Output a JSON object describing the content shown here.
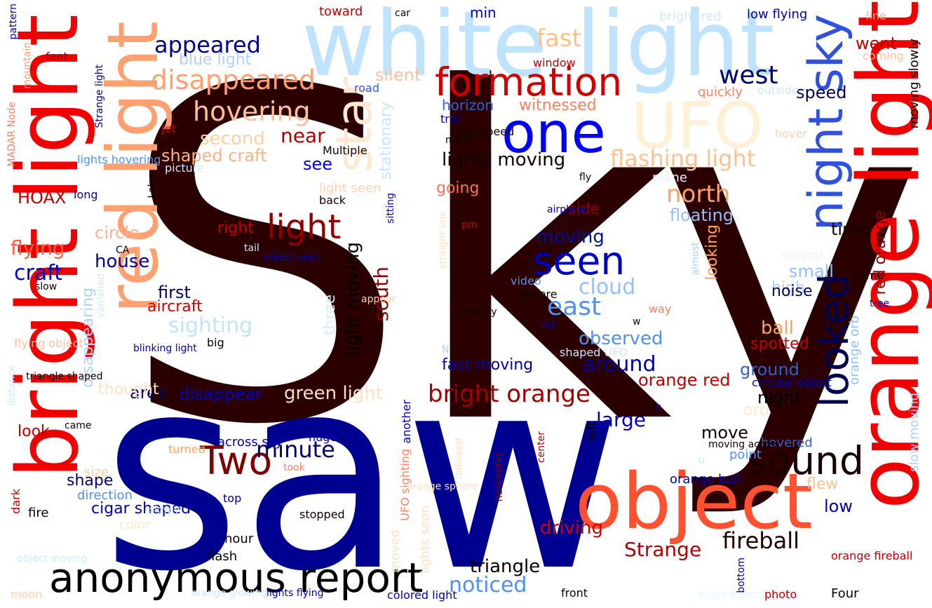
{
  "words": [
    {
      "text": "Sky",
      "color": "#2b0000"
    },
    {
      "text": "saw",
      "color": "#000090"
    },
    {
      "text": "white light",
      "color": "#bfe2ff"
    },
    {
      "text": "orange light",
      "color": "#f00000"
    },
    {
      "text": "bright light",
      "color": "#f00000"
    },
    {
      "text": "red light",
      "color": "#ffa070"
    },
    {
      "text": "object",
      "color": "#ff5030"
    },
    {
      "text": "one",
      "color": "#0000ff"
    },
    {
      "text": "UFO",
      "color": "#fff0d8"
    },
    {
      "text": "formation",
      "color": "#d00000"
    },
    {
      "text": "anonymous report",
      "color": "#000000"
    },
    {
      "text": "seen",
      "color": "#0000c0"
    },
    {
      "text": "sound",
      "color": "#1a0000"
    },
    {
      "text": "Two",
      "color": "#800000"
    },
    {
      "text": "light",
      "color": "#900000"
    },
    {
      "text": "star",
      "color": "#ffe8d0"
    },
    {
      "text": "night sky",
      "color": "#3050e0"
    },
    {
      "text": "looked",
      "color": "#000050"
    },
    {
      "text": "disappeared",
      "color": "#ffa070"
    },
    {
      "text": "hovering",
      "color": "#ffc0a0"
    },
    {
      "text": "bright orange",
      "color": "#a00000"
    },
    {
      "text": "west",
      "color": "#000070"
    },
    {
      "text": "appeared",
      "color": "#000090"
    },
    {
      "text": "fast",
      "color": "#ffc080"
    },
    {
      "text": "flashing light",
      "color": "#ffc090"
    },
    {
      "text": "north",
      "color": "#ffa060"
    },
    {
      "text": "fireball",
      "color": "#200000"
    },
    {
      "text": "Strange",
      "color": "#b00000"
    },
    {
      "text": "east",
      "color": "#5090f0"
    },
    {
      "text": "cloud",
      "color": "#90c0ff"
    },
    {
      "text": "minute",
      "color": "#000060"
    },
    {
      "text": "craft",
      "color": "#0000c0"
    },
    {
      "text": "flying",
      "color": "#ff6040"
    },
    {
      "text": "lights moving",
      "color": "#100000"
    },
    {
      "text": "moving",
      "color": "#0010a0"
    },
    {
      "text": "stationary",
      "color": "#c8e4ff"
    },
    {
      "text": "south",
      "color": "#900000"
    },
    {
      "text": "light moving",
      "color": "#000000"
    },
    {
      "text": "noticed",
      "color": "#5090f0"
    },
    {
      "text": "triangle",
      "color": "#100000"
    },
    {
      "text": "driving",
      "color": "#d00000"
    },
    {
      "text": "speed",
      "color": "#000050"
    },
    {
      "text": "went",
      "color": "#c00000"
    },
    {
      "text": "sighting",
      "color": "#c0e4ff"
    },
    {
      "text": "observed",
      "color": "#5090f0"
    },
    {
      "text": "around",
      "color": "#0000a0"
    },
    {
      "text": "disappear",
      "color": "#0000c0"
    },
    {
      "text": "large",
      "color": "#0000b0"
    },
    {
      "text": "night",
      "color": "#000000"
    },
    {
      "text": "ground",
      "color": "#3060d0"
    },
    {
      "text": "ball",
      "color": "#ffa060"
    },
    {
      "text": "spotted",
      "color": "#c00000"
    },
    {
      "text": "small",
      "color": "#90c0ff"
    },
    {
      "text": "time",
      "color": "#100000"
    },
    {
      "text": "move",
      "color": "#100000"
    },
    {
      "text": "low",
      "color": "#0000b0"
    },
    {
      "text": "HOAX",
      "color": "#c00000"
    },
    {
      "text": "house",
      "color": "#0000a0"
    },
    {
      "text": "circle",
      "color": "#ffb090"
    },
    {
      "text": "near",
      "color": "#b00000"
    },
    {
      "text": "see",
      "color": "#0000e0"
    },
    {
      "text": "shaped craft",
      "color": "#ffb080"
    },
    {
      "text": "second",
      "color": "#ffd0a0"
    },
    {
      "text": "witnessed",
      "color": "#ff8060"
    },
    {
      "text": "horizon",
      "color": "#3060d0"
    },
    {
      "text": "silent",
      "color": "#ffc0a0"
    },
    {
      "text": "blue light",
      "color": "#b0d0ff"
    },
    {
      "text": "first",
      "color": "#000060"
    },
    {
      "text": "aircraft",
      "color": "#d00000"
    },
    {
      "text": "area",
      "color": "#000060"
    },
    {
      "text": "green light",
      "color": "#ffe0c0"
    },
    {
      "text": "look",
      "color": "#c00000"
    },
    {
      "text": "shape",
      "color": "#000070"
    },
    {
      "text": "right",
      "color": "#c00000"
    },
    {
      "text": "side",
      "color": "#900000"
    },
    {
      "text": "going",
      "color": "#ff7050"
    },
    {
      "text": "floating",
      "color": "#90c0ff"
    },
    {
      "text": "looking",
      "color": "#ffa060"
    },
    {
      "text": "red orange",
      "color": "#900000"
    },
    {
      "text": "orange red",
      "color": "#c00000"
    },
    {
      "text": "high",
      "color": "#b0d0ff"
    },
    {
      "text": "noise",
      "color": "#000060"
    },
    {
      "text": "flew",
      "color": "#ffc090"
    },
    {
      "text": "three",
      "color": "#d8ecff"
    },
    {
      "text": "orange orb",
      "color": "#90c0ff"
    },
    {
      "text": "moving slowly",
      "color": "#100000"
    },
    {
      "text": "slow moving",
      "color": "#b0d0ff"
    },
    {
      "text": "disappearing",
      "color": "#b0d0ff"
    },
    {
      "text": "thought",
      "color": "#ffe0c0"
    },
    {
      "text": "orb",
      "color": "#ffe8d0"
    },
    {
      "text": "plane",
      "color": "#e8f4ff"
    },
    {
      "text": "fast moving",
      "color": "#0000b0"
    },
    {
      "text": "hovered",
      "color": "#3060d0"
    },
    {
      "text": "orange ball",
      "color": "#0000b0"
    },
    {
      "text": "cigar shaped",
      "color": "#0000b0"
    },
    {
      "text": "color",
      "color": "#ffe8d0"
    },
    {
      "text": "direction",
      "color": "#5090f0"
    },
    {
      "text": "size",
      "color": "#ffd0a0"
    },
    {
      "text": "fire",
      "color": "#100000"
    },
    {
      "text": "hour",
      "color": "#100000"
    },
    {
      "text": "flash",
      "color": "#100000"
    },
    {
      "text": "lights seen",
      "color": "#ffe0c0"
    },
    {
      "text": "moved",
      "color": "#ffe0c0"
    },
    {
      "text": "left",
      "color": "#100000"
    },
    {
      "text": "across sky",
      "color": "#0000b0"
    },
    {
      "text": "toward",
      "color": "#c00000"
    },
    {
      "text": "car",
      "color": "#100000"
    },
    {
      "text": "min",
      "color": "#0000b0"
    },
    {
      "text": "bright red",
      "color": "#d0e8ff"
    },
    {
      "text": "low flying",
      "color": "#0000b0"
    },
    {
      "text": "line",
      "color": "#ffb080"
    },
    {
      "text": "coming",
      "color": "#ffc0a0"
    },
    {
      "text": "feet",
      "color": "#900000"
    },
    {
      "text": "mountain",
      "color": "#ffa070"
    },
    {
      "text": "pattern",
      "color": "#0000b0"
    },
    {
      "text": "Strange light",
      "color": "#000090"
    },
    {
      "text": "road",
      "color": "#3060d0"
    },
    {
      "text": "window",
      "color": "#c00000"
    },
    {
      "text": "quickly",
      "color": "#ff8060"
    },
    {
      "text": "outside",
      "color": "#d0e8ff"
    },
    {
      "text": "hover",
      "color": "#ffd0b0"
    },
    {
      "text": "trail",
      "color": "#000090"
    },
    {
      "text": "high speed",
      "color": "#100000"
    },
    {
      "text": "made",
      "color": "#100000"
    },
    {
      "text": "Multiple",
      "color": "#100000"
    },
    {
      "text": "jet",
      "color": "#c00000"
    },
    {
      "text": "lights hovering",
      "color": "#5090f0"
    },
    {
      "text": "picture",
      "color": "#d0e8ff"
    },
    {
      "text": "Lake",
      "color": "#100000"
    },
    {
      "text": "fly",
      "color": "#100000"
    },
    {
      "text": "long",
      "color": "#0000b0"
    },
    {
      "text": "light seen",
      "color": "#ffd0b0"
    },
    {
      "text": "back",
      "color": "#100000"
    },
    {
      "text": "airplane",
      "color": "#0000b0"
    },
    {
      "text": "pm",
      "color": "#c00000"
    },
    {
      "text": "CA",
      "color": "#100000"
    },
    {
      "text": "tail",
      "color": "#d0e8ff"
    },
    {
      "text": "object seen",
      "color": "#0000b0"
    },
    {
      "text": "sitting",
      "color": "#0000b0"
    },
    {
      "text": "straight line",
      "color": "#ffe0c0"
    },
    {
      "text": "several",
      "color": "#e8f4ff"
    },
    {
      "text": "home",
      "color": "#100000"
    },
    {
      "text": "almost",
      "color": "#b0d0ff"
    },
    {
      "text": "video",
      "color": "#5090f0"
    },
    {
      "text": "sphere",
      "color": "#100000"
    },
    {
      "text": "slow",
      "color": "#100000"
    },
    {
      "text": "appear",
      "color": "#ffd0b0"
    },
    {
      "text": "tree",
      "color": "#0000b0"
    },
    {
      "text": "suddenly",
      "color": "#100000"
    },
    {
      "text": "way",
      "color": "#ff8060"
    },
    {
      "text": "w",
      "color": "#100000"
    },
    {
      "text": "air",
      "color": "#0000b0"
    },
    {
      "text": "flying object",
      "color": "#ffc0a0"
    },
    {
      "text": "big",
      "color": "#100000"
    },
    {
      "text": "vanished",
      "color": "#d0e8ff"
    },
    {
      "text": "blinking light",
      "color": "#0000b0"
    },
    {
      "text": "N",
      "color": "#b0d0ff"
    },
    {
      "text": "shaped UFO",
      "color": "#d0e8ff"
    },
    {
      "text": "triangle shaped",
      "color": "#100000"
    },
    {
      "text": "distance",
      "color": "#d0e8ff"
    },
    {
      "text": "circular object",
      "color": "#0000b0"
    },
    {
      "text": "s",
      "color": "#0000b0"
    },
    {
      "text": "came",
      "color": "#100000"
    },
    {
      "text": "another",
      "color": "#0000b0"
    },
    {
      "text": "huge",
      "color": "#0000b0"
    },
    {
      "text": "turned",
      "color": "#ffa060"
    },
    {
      "text": "took",
      "color": "#ff8060"
    },
    {
      "text": "center",
      "color": "#c00000"
    },
    {
      "text": "followed",
      "color": "#ffe0c0"
    },
    {
      "text": "UFO sighting",
      "color": "#ff8060"
    },
    {
      "text": "moving across",
      "color": "#100000"
    },
    {
      "text": "point",
      "color": "#5090f0"
    },
    {
      "text": "u",
      "color": "#d0e8ff"
    },
    {
      "text": "dark",
      "color": "#c00000"
    },
    {
      "text": "slowly",
      "color": "#d0e8ff"
    },
    {
      "text": "top",
      "color": "#0000b0"
    },
    {
      "text": "stopped",
      "color": "#100000"
    },
    {
      "text": "helicopter",
      "color": "#800000"
    },
    {
      "text": "object moving",
      "color": "#d0e8ff"
    },
    {
      "text": "orange fireball",
      "color": "#c00000"
    },
    {
      "text": "moon",
      "color": "#ffd0b0"
    },
    {
      "text": "orange glowing",
      "color": "#d0e8ff"
    },
    {
      "text": "lights flying",
      "color": "#0000b0"
    },
    {
      "text": "colored light",
      "color": "#0000b0"
    },
    {
      "text": "front",
      "color": "#100000"
    },
    {
      "text": "bright object",
      "color": "#e8f4ff"
    },
    {
      "text": "bottom",
      "color": "#0000b0"
    },
    {
      "text": "photo",
      "color": "#c00000"
    },
    {
      "text": "Four",
      "color": "#100000"
    },
    {
      "text": "MADAR Node",
      "color": "#ff8060"
    },
    {
      "text": "orange sphere",
      "color": "#ffe0c0"
    },
    {
      "text": "away",
      "color": "#fff0e0"
    }
  ]
}
